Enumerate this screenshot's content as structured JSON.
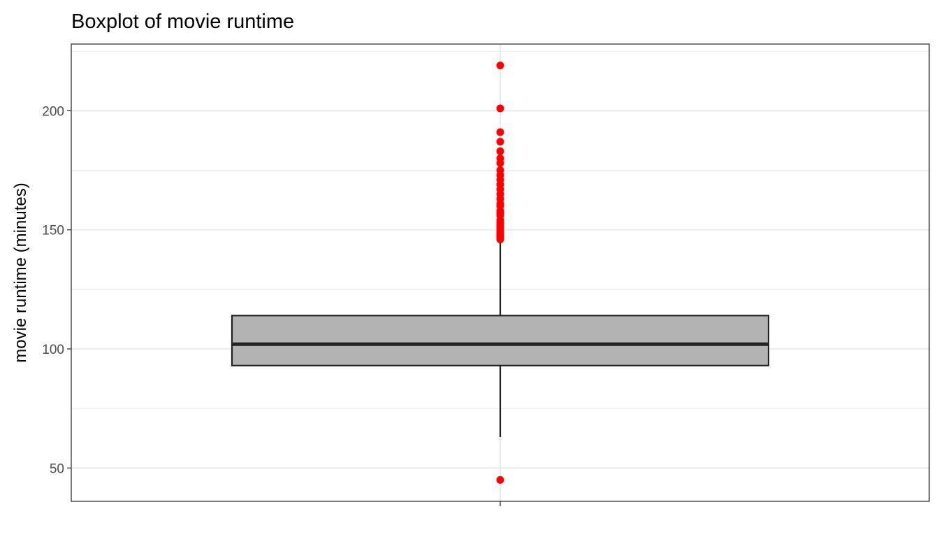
{
  "chart_data": {
    "type": "boxplot",
    "title": "Boxplot of movie runtime",
    "xlabel": "",
    "ylabel": "movie runtime (minutes)",
    "ylim": [
      36,
      228
    ],
    "y_ticks": [
      50,
      100,
      150,
      200
    ],
    "y_minor_ticks": [
      75,
      125,
      175,
      225
    ],
    "grid": true,
    "box": {
      "whisker_low": 63,
      "q1": 93,
      "median": 102,
      "q3": 114,
      "whisker_high": 146,
      "fill": "#b3b3b3",
      "outline": "#222222"
    },
    "outliers": [
      45,
      146,
      146.5,
      147,
      147.5,
      148,
      149,
      150,
      151,
      152,
      153,
      154,
      156,
      157,
      158,
      160,
      161,
      163,
      165,
      167,
      169,
      171,
      173,
      175,
      178,
      180,
      183,
      187,
      191,
      201,
      219
    ],
    "outlier_color": "#ff0000"
  }
}
